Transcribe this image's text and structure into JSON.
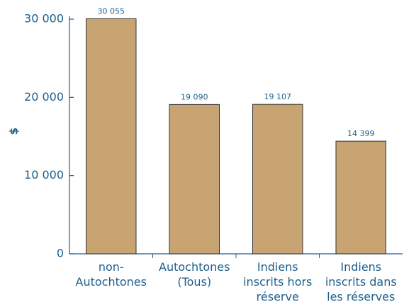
{
  "chart_data": {
    "type": "bar",
    "ylabel": "$",
    "categories": [
      "non-Autochtones",
      "Autochtones (Tous)",
      "Indiens inscrits hors réserve",
      "Indiens inscrits dans les réserves"
    ],
    "values": [
      30055,
      19090,
      19107,
      14399
    ],
    "value_labels": [
      "30 055",
      "19 090",
      "19 107",
      "14 399"
    ],
    "color": "#c9a473",
    "ylim": [
      0,
      30000
    ],
    "yticks": [
      0,
      {
        "value": 10000,
        "label": "10 000"
      },
      {
        "value": 20000,
        "label": "20 000"
      },
      {
        "value": 30000,
        "label": "30 000"
      }
    ]
  }
}
